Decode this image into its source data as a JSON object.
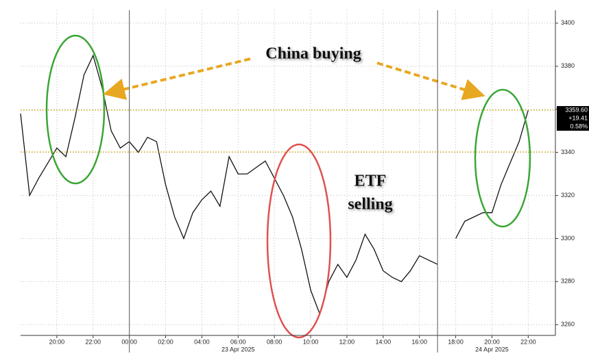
{
  "chart_data": {
    "type": "line",
    "x": [
      -6,
      -5.5,
      -5,
      -4.5,
      -4,
      -3.5,
      -3,
      -2.5,
      -2,
      -1.5,
      -1,
      -0.5,
      0,
      0.5,
      1,
      1.5,
      2,
      2.5,
      3,
      3.5,
      4,
      4.5,
      5,
      5.5,
      6,
      6.5,
      7,
      7.5,
      8,
      8.5,
      9,
      9.5,
      10,
      10.5,
      11,
      11.5,
      12,
      12.5,
      13,
      13.5,
      14,
      14.5,
      15,
      15.5,
      16,
      16.5,
      17,
      17.5,
      18,
      18.5,
      19,
      19.5,
      20,
      20.5,
      21,
      21.5,
      22
    ],
    "series": [
      {
        "color": "#111111",
        "values": [
          3358,
          3320,
          3328,
          3335,
          3342,
          3338,
          3356,
          3376,
          3385,
          3370,
          3350,
          3342,
          3345,
          3340,
          3347,
          3345,
          3325,
          3310,
          3300,
          3312,
          3318,
          3322,
          3315,
          3338,
          3330,
          3330,
          3333,
          3336,
          3328,
          3320,
          3310,
          3295,
          3276,
          3265,
          3280,
          3288,
          3282,
          3290,
          3302,
          3295,
          3285,
          3282,
          3280,
          3285,
          3292,
          3290,
          3288,
          null,
          3300,
          3308,
          3310,
          3312,
          3312,
          3325,
          3335,
          3345,
          3359.6
        ]
      }
    ],
    "xlim": [
      -6,
      23.5
    ],
    "xticks": [
      {
        "value": -4,
        "label": "20:00"
      },
      {
        "value": -2,
        "label": "22:00"
      },
      {
        "value": 0,
        "label": "00:00"
      },
      {
        "value": 2,
        "label": "02:00"
      },
      {
        "value": 4,
        "label": "04:00"
      },
      {
        "value": 6,
        "label": "06:00"
      },
      {
        "value": 8,
        "label": "08:00"
      },
      {
        "value": 10,
        "label": "10:00"
      },
      {
        "value": 12,
        "label": "12:00"
      },
      {
        "value": 14,
        "label": "14:00"
      },
      {
        "value": 16,
        "label": "16:00"
      },
      {
        "value": 18,
        "label": "18:00"
      },
      {
        "value": 20,
        "label": "20:00"
      },
      {
        "value": 22,
        "label": "22:00"
      }
    ],
    "x_dates": [
      {
        "value": 6,
        "label": "23 Apr 2025"
      },
      {
        "value": 20,
        "label": "24 Apr 2025"
      }
    ],
    "session_breaks": [
      0,
      17
    ],
    "ylim": [
      3255,
      3406
    ],
    "yticks": [
      3260,
      3280,
      3300,
      3320,
      3340,
      3360,
      3380,
      3400
    ],
    "grid": true,
    "previous_close": 3340.19,
    "last_price": {
      "value": 3359.6,
      "label": "3359.60"
    },
    "change": "+19.41",
    "change_pct": "0.58%",
    "annotations": {
      "china": "China buying",
      "etf": "ETF",
      "selling": "selling"
    }
  }
}
